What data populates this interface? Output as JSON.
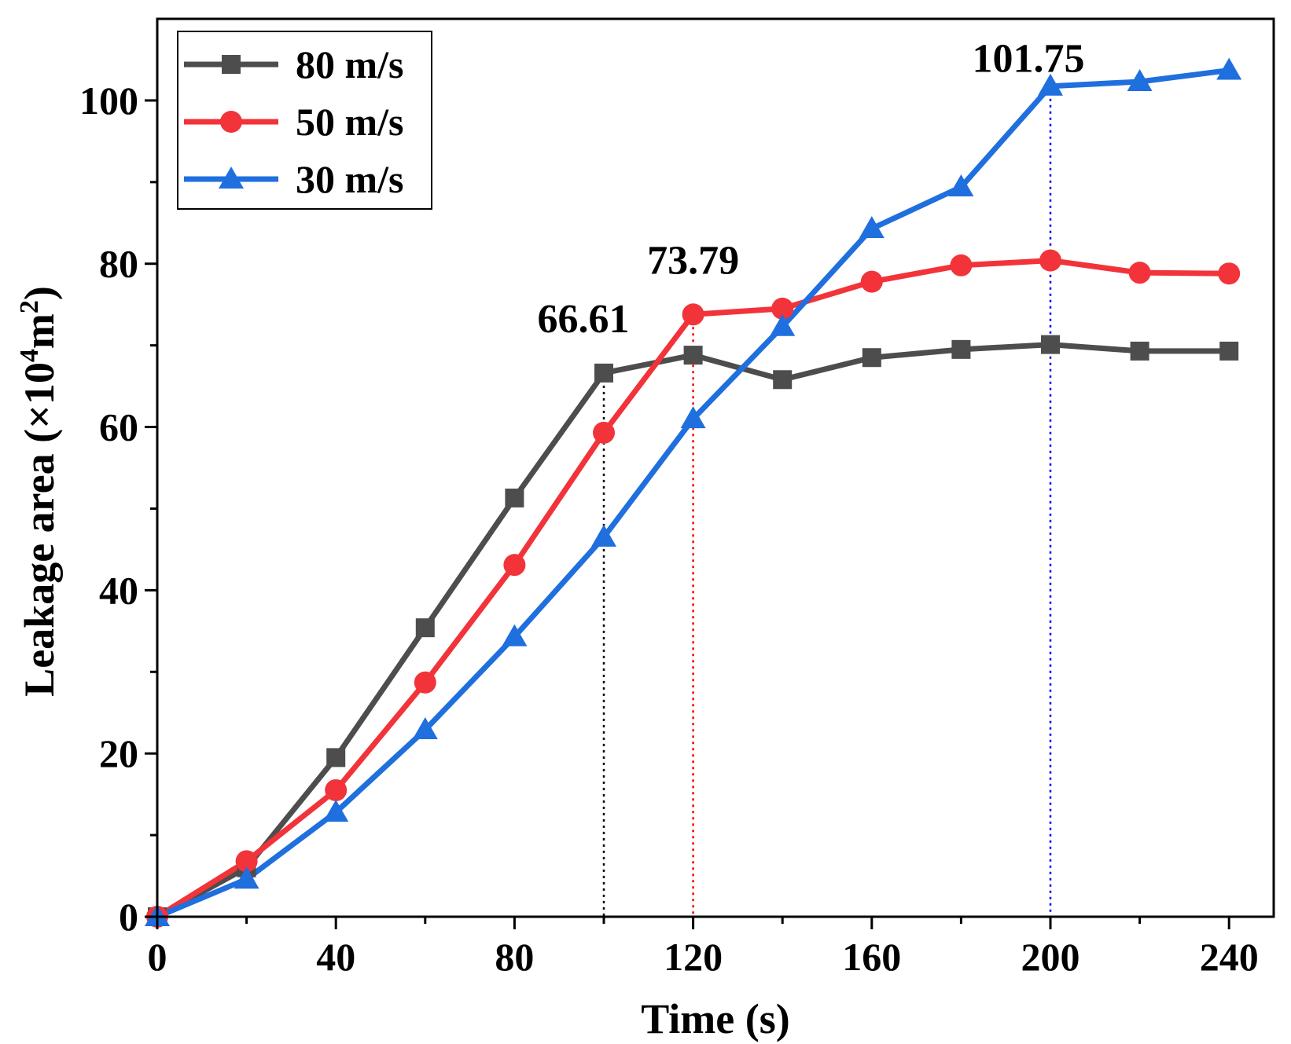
{
  "chart_data": {
    "type": "line",
    "title": "",
    "xlabel": "Time (s)",
    "ylabel": {
      "prefix": "Leakage area (×10",
      "sup1": "4",
      "mid": "m",
      "sup2": "2",
      "suffix": ")"
    },
    "xlim": [
      0,
      250
    ],
    "ylim": [
      0,
      110
    ],
    "xticks": [
      0,
      40,
      80,
      120,
      160,
      200,
      240
    ],
    "xminor": [
      20,
      60,
      100,
      140,
      180,
      220
    ],
    "yticks": [
      0,
      20,
      40,
      60,
      80,
      100
    ],
    "yminor": [
      10,
      30,
      50,
      70,
      90
    ],
    "grid": false,
    "legend_position": "top-left",
    "x": [
      0,
      20,
      40,
      60,
      80,
      100,
      120,
      140,
      160,
      180,
      200,
      220,
      240
    ],
    "series": [
      {
        "name": "80 m/s",
        "color": "#4d4d4d",
        "marker": "square",
        "values": [
          0,
          6.0,
          19.5,
          35.4,
          51.3,
          66.61,
          68.8,
          65.8,
          68.5,
          69.5,
          70.1,
          69.3,
          69.3
        ]
      },
      {
        "name": "50 m/s",
        "color": "#f2333a",
        "marker": "circle",
        "values": [
          0,
          6.8,
          15.5,
          28.7,
          43.1,
          59.3,
          73.79,
          74.5,
          77.8,
          79.8,
          80.4,
          78.9,
          78.8
        ]
      },
      {
        "name": "30 m/s",
        "color": "#1f6fde",
        "marker": "triangle",
        "values": [
          0,
          4.6,
          12.8,
          22.9,
          34.3,
          46.5,
          61.0,
          72.3,
          84.3,
          89.4,
          101.75,
          102.3,
          103.7
        ]
      }
    ],
    "annotations": [
      {
        "text": "66.61",
        "x": 100,
        "y": 66.61,
        "color": "#000000"
      },
      {
        "text": "73.79",
        "x": 120,
        "y": 73.79,
        "color": "#ff0000"
      },
      {
        "text": "101.75",
        "x": 200,
        "y": 101.75,
        "color": "#0000ff"
      }
    ]
  }
}
